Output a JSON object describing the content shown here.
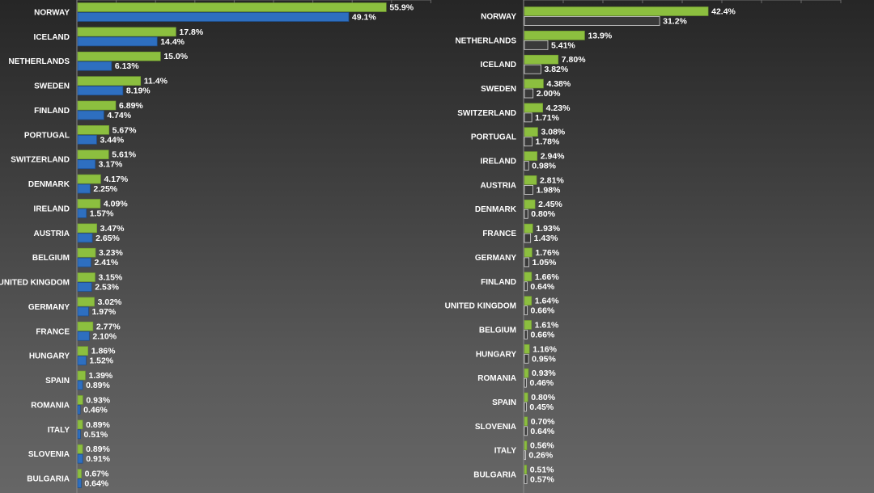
{
  "colors": {
    "series_a": "#8cbf3f",
    "series_a_edge": "#6f9a2d",
    "series_b_left": "#2e6fc0",
    "series_b_left_edge": "#1f4f8e",
    "series_b_right": "#3a3a3a",
    "series_b_right_edge": "#d8d8d8"
  },
  "chart_data": [
    {
      "type": "bar",
      "orientation": "horizontal",
      "title": "",
      "xlabel": "",
      "ylabel": "",
      "xlim": [
        0,
        70
      ],
      "grid": true,
      "categories": [
        "NORWAY",
        "ICELAND",
        "NETHERLANDS",
        "SWEDEN",
        "FINLAND",
        "PORTUGAL",
        "SWITZERLAND",
        "DENMARK",
        "IRELAND",
        "AUSTRIA",
        "BELGIUM",
        "UNITED KINGDOM",
        "GERMANY",
        "FRANCE",
        "HUNGARY",
        "SPAIN",
        "ROMANIA",
        "ITALY",
        "SLOVENIA",
        "BULGARIA"
      ],
      "series": [
        {
          "values": [
            55.9,
            17.8,
            15.0,
            11.4,
            6.89,
            5.67,
            5.61,
            4.17,
            4.09,
            3.47,
            3.23,
            3.15,
            3.02,
            2.77,
            1.86,
            1.39,
            0.93,
            0.89,
            0.89,
            0.67
          ],
          "labels": [
            "55.9%",
            "17.8%",
            "15.0%",
            "11.4%",
            "6.89%",
            "5.67%",
            "5.61%",
            "4.17%",
            "4.09%",
            "3.47%",
            "3.23%",
            "3.15%",
            "3.02%",
            "2.77%",
            "1.86%",
            "1.39%",
            "0.93%",
            "0.89%",
            "0.89%",
            "0.67%"
          ]
        },
        {
          "values": [
            49.1,
            14.4,
            6.13,
            8.19,
            4.74,
            3.44,
            3.17,
            2.25,
            1.57,
            2.65,
            2.41,
            2.53,
            1.97,
            2.1,
            1.52,
            0.89,
            0.46,
            0.51,
            0.91,
            0.64
          ],
          "labels": [
            "49.1%",
            "14.4%",
            "6.13%",
            "8.19%",
            "4.74%",
            "3.44%",
            "3.17%",
            "2.25%",
            "1.57%",
            "2.65%",
            "2.41%",
            "2.53%",
            "1.97%",
            "2.10%",
            "1.52%",
            "0.89%",
            "0.46%",
            "0.51%",
            "0.91%",
            "0.64%"
          ]
        }
      ]
    },
    {
      "type": "bar",
      "orientation": "horizontal",
      "title": "",
      "xlabel": "",
      "ylabel": "",
      "xlim": [
        0,
        55
      ],
      "grid": true,
      "categories": [
        "NORWAY",
        "NETHERLANDS",
        "ICELAND",
        "SWEDEN",
        "SWITZERLAND",
        "PORTUGAL",
        "IRELAND",
        "AUSTRIA",
        "DENMARK",
        "FRANCE",
        "GERMANY",
        "FINLAND",
        "UNITED KINGDOM",
        "BELGIUM",
        "HUNGARY",
        "ROMANIA",
        "SPAIN",
        "SLOVENIA",
        "ITALY",
        "BULGARIA"
      ],
      "series": [
        {
          "values": [
            42.4,
            13.9,
            7.8,
            4.38,
            4.23,
            3.08,
            2.94,
            2.81,
            2.45,
            1.93,
            1.76,
            1.66,
            1.64,
            1.61,
            1.16,
            0.93,
            0.8,
            0.7,
            0.56,
            0.51
          ],
          "labels": [
            "42.4%",
            "13.9%",
            "7.80%",
            "4.38%",
            "4.23%",
            "3.08%",
            "2.94%",
            "2.81%",
            "2.45%",
            "1.93%",
            "1.76%",
            "1.66%",
            "1.64%",
            "1.61%",
            "1.16%",
            "0.93%",
            "0.80%",
            "0.70%",
            "0.56%",
            "0.51%"
          ]
        },
        {
          "values": [
            31.2,
            5.41,
            3.82,
            2.0,
            1.71,
            1.78,
            0.98,
            1.98,
            0.8,
            1.43,
            1.05,
            0.64,
            0.66,
            0.66,
            0.95,
            0.46,
            0.45,
            0.64,
            0.26,
            0.57
          ],
          "labels": [
            "31.2%",
            "5.41%",
            "3.82%",
            "2.00%",
            "1.71%",
            "1.78%",
            "0.98%",
            "1.98%",
            "0.80%",
            "1.43%",
            "1.05%",
            "0.64%",
            "0.66%",
            "0.66%",
            "0.95%",
            "0.46%",
            "0.45%",
            "0.64%",
            "0.26%",
            "0.57%"
          ]
        }
      ]
    }
  ]
}
